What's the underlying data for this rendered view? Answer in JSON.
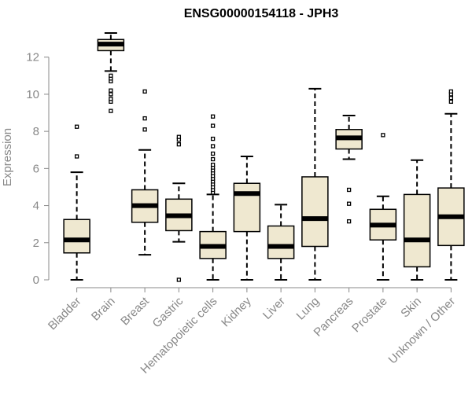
{
  "chart_data": {
    "type": "box",
    "title": "ENSG00000154118 - JPH3",
    "xlabel": "",
    "ylabel": "Expression",
    "ylim": [
      0,
      13.3
    ],
    "yticks": [
      0,
      2,
      4,
      6,
      8,
      10,
      12
    ],
    "grid": false,
    "box_fill": "#efe8d0",
    "categories": [
      "Bladder",
      "Brain",
      "Breast",
      "Gastric",
      "Hematopoietic cells",
      "Kidney",
      "Liver",
      "Lung",
      "Pancreas",
      "Prostate",
      "Skin",
      "Unknown / Other"
    ],
    "boxes": [
      {
        "whisker_low": 0.0,
        "q1": 1.45,
        "median": 2.15,
        "q3": 3.25,
        "whisker_high": 5.8,
        "outliers": [
          6.65,
          8.25
        ]
      },
      {
        "whisker_low": 11.25,
        "q1": 12.35,
        "median": 12.7,
        "q3": 12.95,
        "whisker_high": 13.3,
        "outliers": [
          9.1,
          9.6,
          9.75,
          10.0,
          10.2,
          10.7,
          10.85,
          11.0
        ]
      },
      {
        "whisker_low": 1.35,
        "q1": 3.1,
        "median": 4.0,
        "q3": 4.85,
        "whisker_high": 7.0,
        "outliers": [
          8.1,
          8.7,
          10.15
        ]
      },
      {
        "whisker_low": 2.05,
        "q1": 2.65,
        "median": 3.45,
        "q3": 4.35,
        "whisker_high": 5.2,
        "outliers": [
          0.0,
          7.3,
          7.55,
          7.7
        ]
      },
      {
        "whisker_low": 0.0,
        "q1": 1.15,
        "median": 1.8,
        "q3": 2.6,
        "whisker_high": 4.6,
        "outliers": [
          4.7,
          4.85,
          5.0,
          5.15,
          5.3,
          5.45,
          5.6,
          5.75,
          5.9,
          6.05,
          6.2,
          6.5,
          6.8,
          7.2,
          7.6,
          8.3,
          8.8
        ]
      },
      {
        "whisker_low": 0.0,
        "q1": 2.6,
        "median": 4.65,
        "q3": 5.2,
        "whisker_high": 6.65,
        "outliers": []
      },
      {
        "whisker_low": 0.0,
        "q1": 1.15,
        "median": 1.8,
        "q3": 2.9,
        "whisker_high": 4.05,
        "outliers": []
      },
      {
        "whisker_low": 0.0,
        "q1": 1.8,
        "median": 3.3,
        "q3": 5.55,
        "whisker_high": 10.3,
        "outliers": []
      },
      {
        "whisker_low": 6.5,
        "q1": 7.05,
        "median": 7.65,
        "q3": 8.1,
        "whisker_high": 8.85,
        "outliers": [
          3.15,
          4.1,
          4.85
        ]
      },
      {
        "whisker_low": 0.0,
        "q1": 2.15,
        "median": 2.95,
        "q3": 3.8,
        "whisker_high": 4.5,
        "outliers": [
          7.8
        ]
      },
      {
        "whisker_low": 0.0,
        "q1": 0.7,
        "median": 2.15,
        "q3": 4.6,
        "whisker_high": 6.45,
        "outliers": []
      },
      {
        "whisker_low": 0.0,
        "q1": 1.85,
        "median": 3.4,
        "q3": 4.95,
        "whisker_high": 8.95,
        "outliers": [
          9.6,
          9.8,
          10.0,
          10.15
        ]
      }
    ]
  }
}
